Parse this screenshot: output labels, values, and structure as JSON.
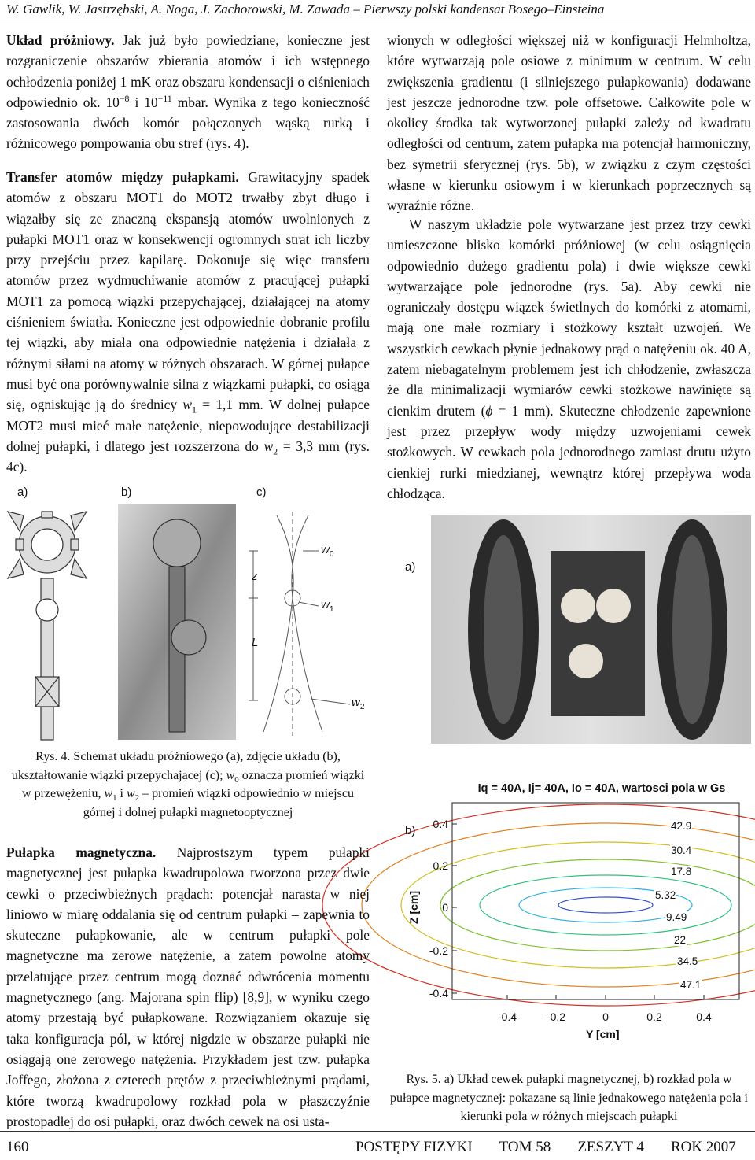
{
  "header": {
    "running_title": "W. Gawlik, W. Jastrzębski, A. Noga, J. Zachorowski, M. Zawada – Pierwszy polski kondensat Bosego–Einsteina"
  },
  "left_column": {
    "paragraphs": [
      {
        "runs": [
          {
            "b": "Układ próżniowy."
          },
          {
            "t": " Jak już było powiedziane, konieczne jest rozgraniczenie obszarów zbierania atomów i ich wstępnego ochłodzenia poniżej 1 mK oraz obszaru kondensacji o ciśnieniach odpowiednio ok. 10"
          },
          {
            "sup": "−8"
          },
          {
            "t": " i 10"
          },
          {
            "sup": "−11"
          },
          {
            "t": " mbar. Wynika z tego konieczność zastosowania dwóch komór połączonych wąską rurką i różnicowego pompowania obu stref (rys. 4)."
          }
        ]
      },
      {
        "runs": [
          {
            "b": "Transfer atomów między pułapkami."
          },
          {
            "t": " Grawitacyjny spadek atomów z obszaru MOT1 do MOT2 trwałby zbyt długo i wiązałby się ze znaczną ekspansją atomów uwolnionych z pułapki MOT1 oraz w konsekwencji ogromnych strat ich liczby przy przejściu przez kapilarę. Dokonuje się więc transferu atomów przez wydmuchiwanie atomów z pracującej pułapki MOT1 za pomocą wiązki przepychającej, działającej na atomy ciśnieniem światła. Konieczne jest odpowiednie dobranie profilu tej wiązki, aby miała ona odpowiednie natężenia i działała z różnymi siłami na atomy w różnych obszarach. W górnej pułapce musi być ona porównywalnie silna z wiązkami pułapki, co osiąga się, ogniskując ją do średnicy "
          },
          {
            "i": "w"
          },
          {
            "sub": "1"
          },
          {
            "t": " = 1,1 mm. W dolnej pułapce MOT2 musi mieć małe natężenie, niepowodujące destabilizacji dolnej pułapki, i dlatego jest rozszerzona do "
          },
          {
            "i": "w"
          },
          {
            "sub": "2"
          },
          {
            "t": " = 3,3 mm (rys. 4c)."
          }
        ]
      },
      {
        "runs": [
          {
            "b": "Pułapka magnetyczna."
          },
          {
            "t": " Najprostszym typem pułapki magnetycznej jest pułapka kwadrupolowa tworzona przez dwie cewki o przeciwbieżnych prądach: potencjał narasta w niej liniowo w miarę oddalania się od centrum pułapki – zapewnia to skuteczne pułapkowanie, ale w centrum pułapki pole magnetyczne ma zerowe natężenie, a zatem powolne atomy przelatujące przez centrum mogą doznać odwrócenia momentu magnetycznego (ang. Majorana spin flip) [8,9], w wyniku czego atomy przestają być pułapkowane. Rozwiązaniem okazuje się taka konfiguracja pól, w której nigdzie w obszarze pułapki nie osiągają one zerowego natężenia. Przykładem jest tzw. pułapka Joffego, złożona z czterech prętów z przeciwbieżnymi prądami, które tworzą kwadrupolowy rozkład pola w płaszczyźnie prostopadłej do osi pułapki, oraz dwóch cewek na osi usta-"
          }
        ]
      }
    ]
  },
  "right_column": {
    "paragraphs": [
      {
        "runs": [
          {
            "t": "wionych w odległości większej niż w konfiguracji Helmholtza, które wytwarzają pole osiowe z minimum w centrum. W celu zwiększenia gradientu (i silniejszego pułapkowania) dodawane jest jeszcze jednorodne tzw. pole offsetowe. Całkowite pole w okolicy środka tak wytworzonej pułapki zależy od kwadratu odległości od centrum, zatem pułapka ma potencjał harmoniczny, bez symetrii sferycznej (rys. 5b), w związku z czym częstości własne w kierunku osiowym i w kierunkach poprzecznych są wyraźnie różne."
          }
        ]
      },
      {
        "runs": [
          {
            "t": "W naszym układzie pole wytwarzane jest przez trzy cewki umieszczone blisko komórki próżniowej (w celu osiągnięcia odpowiednio dużego gradientu pola) i dwie większe cewki wytwarzające pole jednorodne (rys. 5a). Aby cewki nie ograniczały dostępu wiązek świetlnych do komórki z atomami, mają one małe rozmiary i stożkowy kształt uzwojeń. We wszystkich cewkach płynie jednakowy prąd o natężeniu ok. 40 A, zatem niebagatelnym problemem jest ich chłodzenie, zwłaszcza że dla minimalizacji wymiarów cewki stożkowe nawinięte są cienkim drutem ("
          },
          {
            "i": "ϕ"
          },
          {
            "t": " = 1 mm). Skuteczne chłodzenie zapewnione jest przez przepływ wody między uzwojeniami cewek stożkowych. W cewkach pola jednorodnego zamiast drutu użyto cienkiej rurki miedzianej, wewnątrz której przepływa woda chłodząca."
          }
        ]
      }
    ]
  },
  "figure_4": {
    "panel_labels": [
      "a)",
      "b)",
      "c)"
    ],
    "beam_labels": [
      {
        "runs": [
          {
            "i": "w"
          },
          {
            "sub": "0"
          }
        ]
      },
      {
        "runs": [
          {
            "i": "z"
          }
        ]
      },
      {
        "runs": [
          {
            "i": "w"
          },
          {
            "sub": "1"
          }
        ]
      },
      {
        "runs": [
          {
            "i": "L"
          }
        ]
      },
      {
        "runs": [
          {
            "i": "w"
          },
          {
            "sub": "2"
          }
        ]
      }
    ],
    "caption": {
      "runs": [
        {
          "t": "Rys. 4. Schemat układu próżniowego (a), zdjęcie układu (b), ukształtowanie wiązki przepychającej (c); "
        },
        {
          "i": "w"
        },
        {
          "sub": "0"
        },
        {
          "t": " oznacza promień wiązki w przewężeniu, "
        },
        {
          "i": "w"
        },
        {
          "sub": "1"
        },
        {
          "t": " i "
        },
        {
          "i": "w"
        },
        {
          "sub": "2"
        },
        {
          "t": " – promień wiązki odpowiednio w miejscu górnej i dolnej pułapki magnetooptycznej"
        }
      ]
    }
  },
  "figure_5": {
    "panel_labels": [
      "a)",
      "b)"
    ],
    "plot": {
      "title": "Iq = 40A, Ij= 40A, Io = 40A, wartosci pola w Gs",
      "y_label": "Z [cm]",
      "x_label": "Y [cm]",
      "y_tick_labels": [
        "0.4",
        "0.2",
        "0",
        "-0.2",
        "-0.4"
      ],
      "x_tick_labels": [
        "-0.4",
        "-0.2",
        "0",
        "0.2",
        "0.4"
      ],
      "contour_labels": [
        "42.9",
        "30.4",
        "17.8",
        "5.32",
        "9.49",
        "22",
        "34.5",
        "47.1"
      ]
    },
    "caption": {
      "runs": [
        {
          "t": "Rys. 5. a) Układ cewek pułapki magnetycznej, b) rozkład pola w pułapce magnetycznej: pokazane są linie jednakowego natężenia pola i kierunki pola w różnych miejscach pułapki"
        }
      ]
    }
  },
  "footer": {
    "page_number": "160",
    "journal": "POSTĘPY FIZYKI",
    "volume": "TOM 58",
    "issue": "ZESZYT 4",
    "year": "ROK 2007"
  }
}
